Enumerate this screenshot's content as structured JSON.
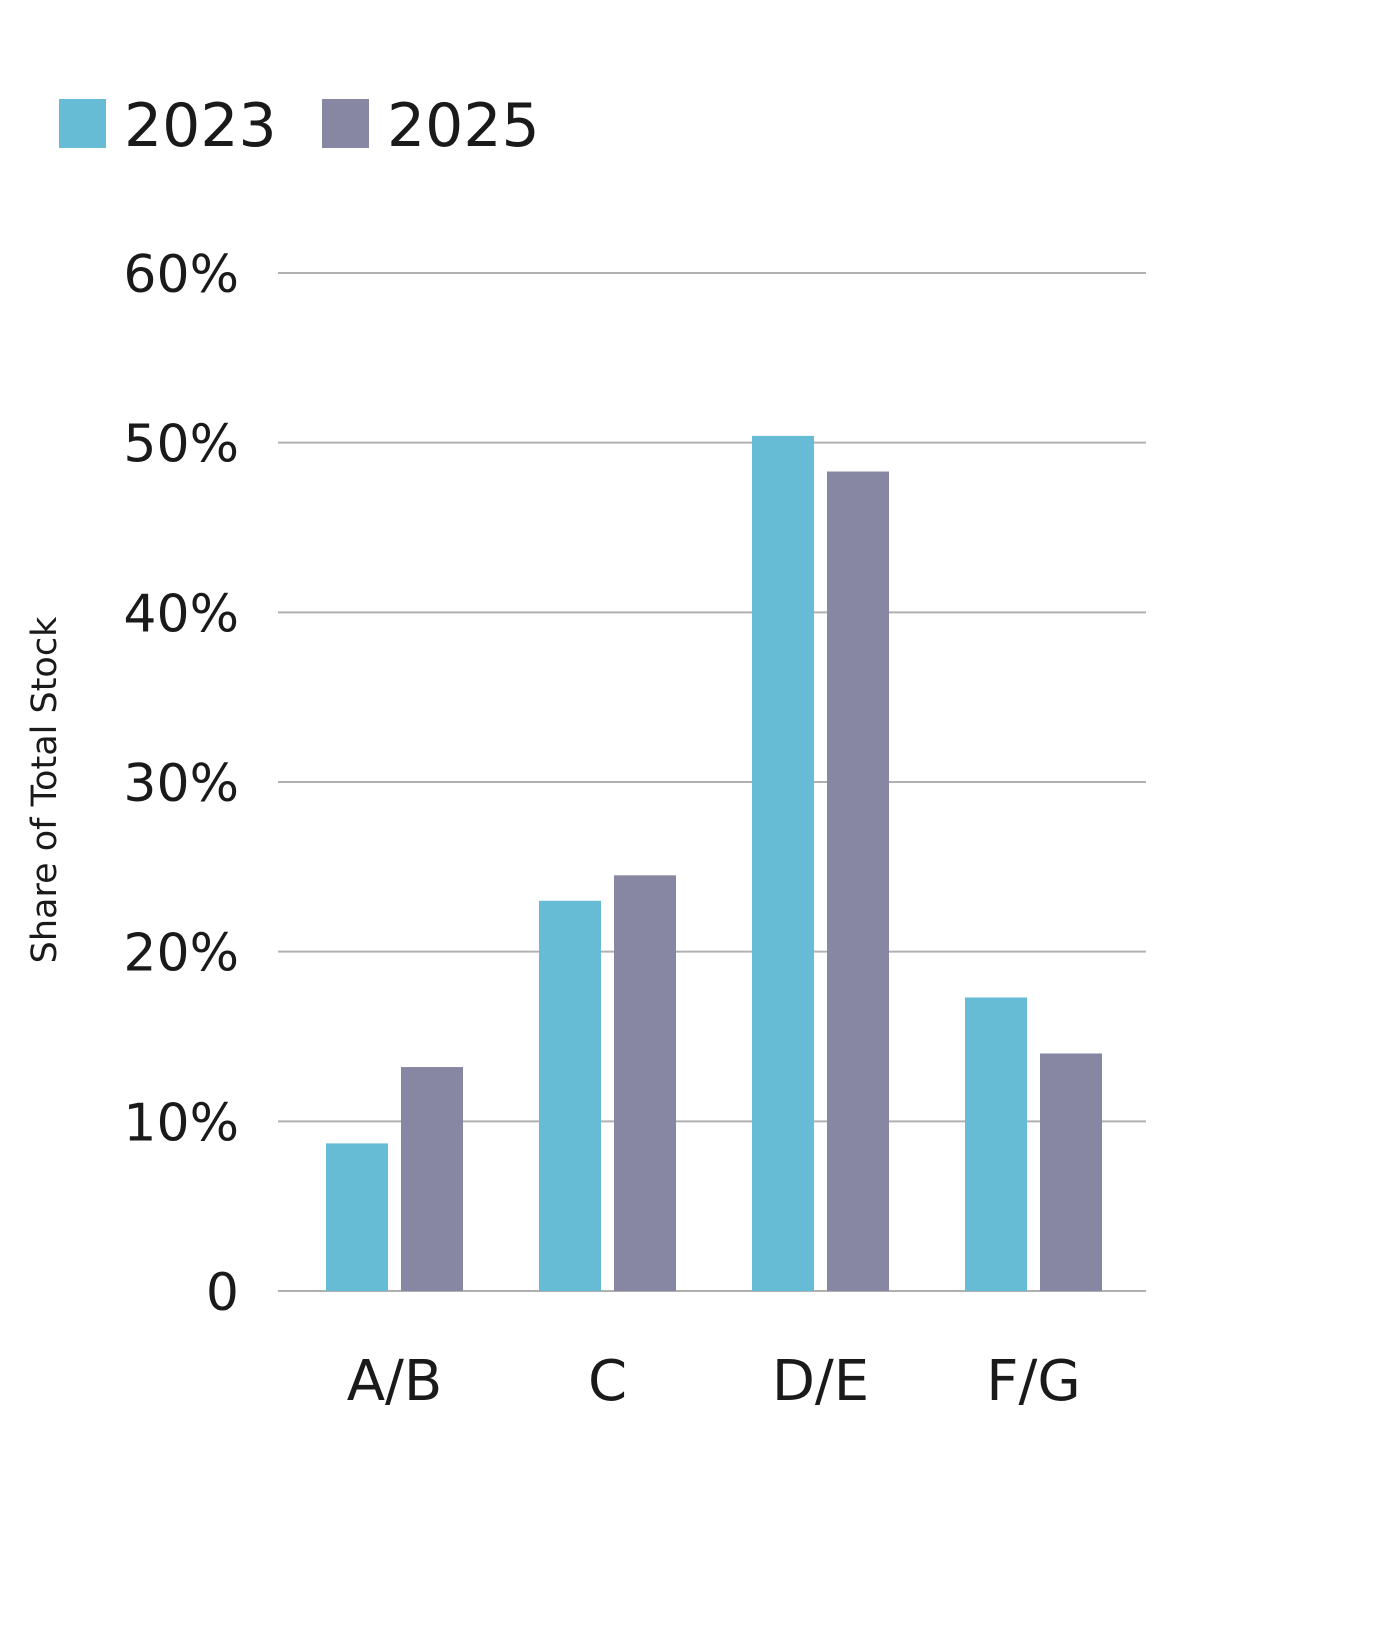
{
  "chart_data": {
    "type": "bar",
    "title": "",
    "xlabel": "",
    "ylabel": "Share of Total Stock",
    "categories": [
      "A/B",
      "C",
      "D/E",
      "F/G"
    ],
    "series": [
      {
        "name": "2023",
        "color": "#66bcd5",
        "values": [
          8.7,
          23.0,
          50.4,
          17.3
        ]
      },
      {
        "name": "2025",
        "color": "#8786a3",
        "values": [
          13.2,
          24.5,
          48.3,
          14.0
        ]
      }
    ],
    "ylim": [
      0,
      60
    ],
    "yticks": [
      0,
      10,
      20,
      30,
      40,
      50,
      60
    ],
    "ytick_labels": [
      "0",
      "10%",
      "20%",
      "30%",
      "40%",
      "50%",
      "60%"
    ],
    "grid": true,
    "gridline_color": "#b0b0b0",
    "legend": "top-left"
  }
}
